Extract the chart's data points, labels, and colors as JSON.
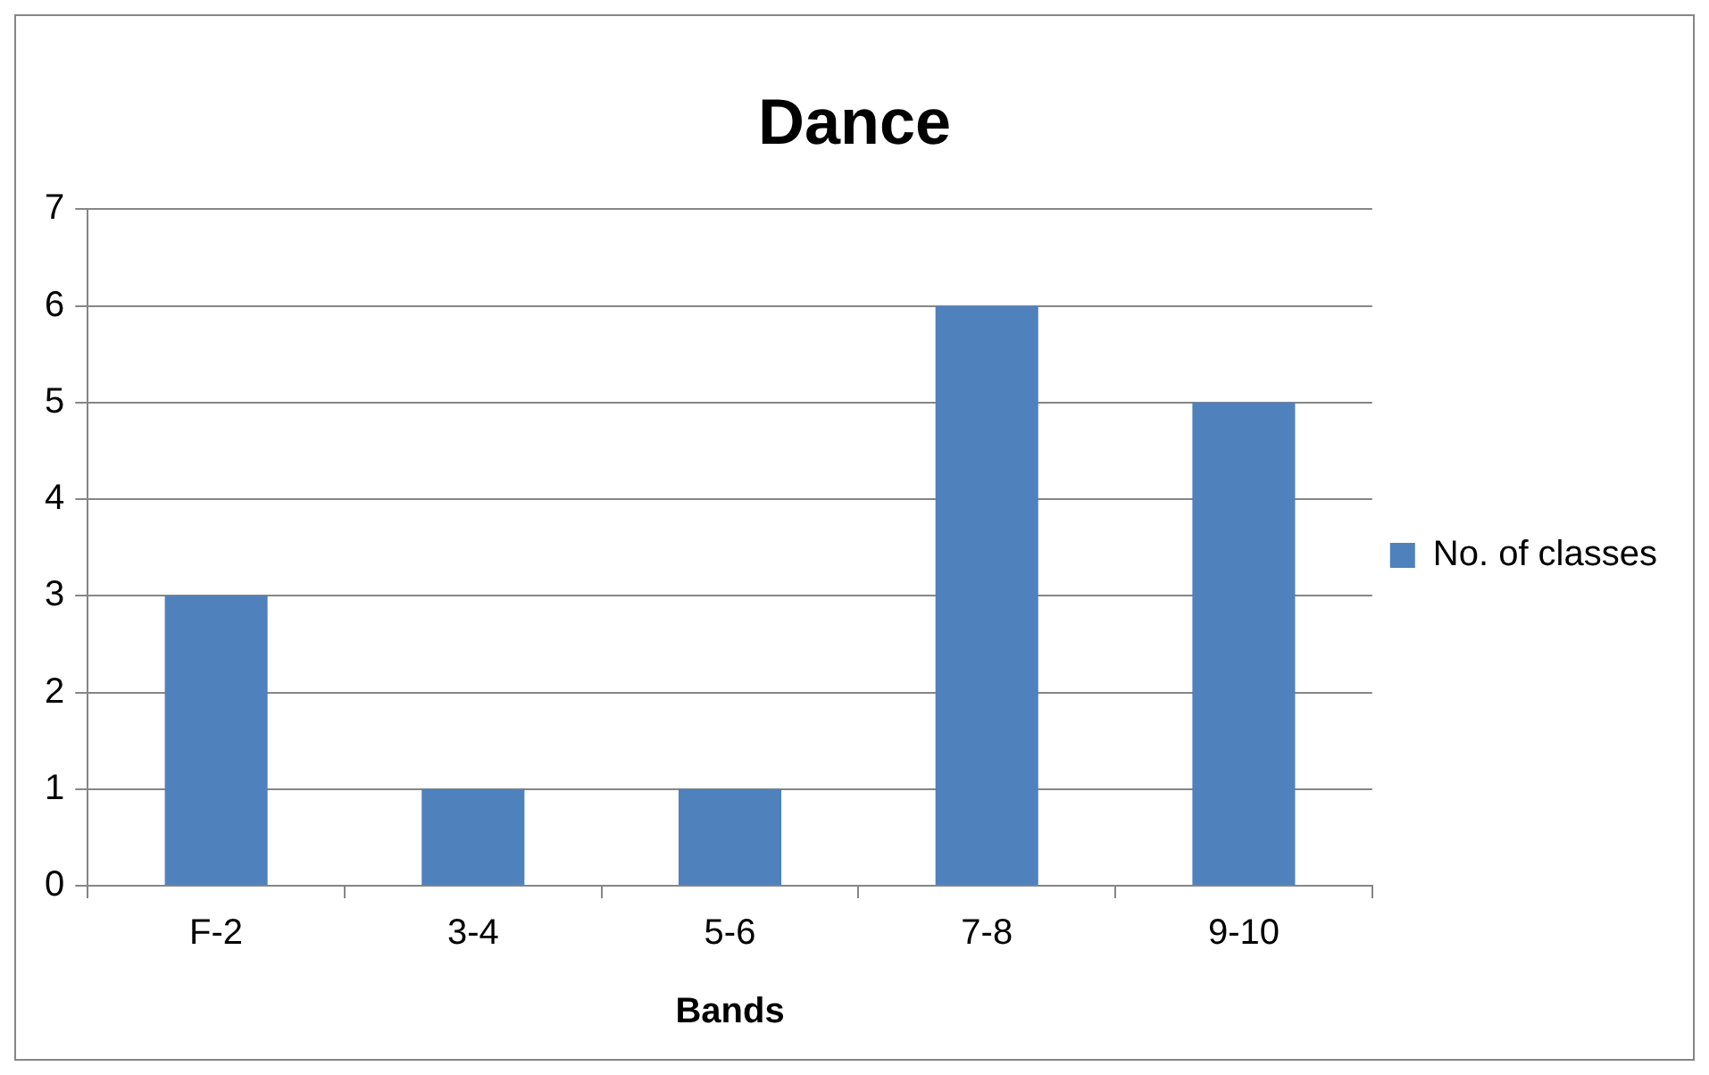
{
  "chart_data": {
    "type": "bar",
    "title": "Dance",
    "xlabel": "Bands",
    "categories": [
      "F-2",
      "3-4",
      "5-6",
      "7-8",
      "9-10"
    ],
    "series": [
      {
        "name": "No. of classes",
        "color": "#4f81bd",
        "values": [
          3,
          1,
          1,
          6,
          5
        ]
      }
    ],
    "ylim": [
      0,
      7
    ],
    "yticks": [
      0,
      1,
      2,
      3,
      4,
      5,
      6,
      7
    ],
    "grid": "y",
    "legend": "right"
  }
}
